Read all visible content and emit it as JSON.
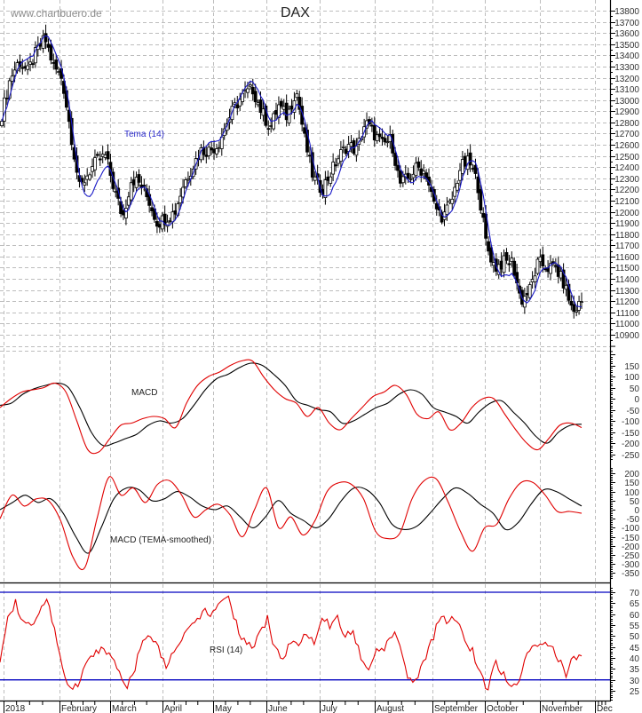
{
  "header": {
    "site": "www.chartbuero.de",
    "title": "DAX"
  },
  "labels": {
    "tema": "Tema (14)",
    "macd": "MACD",
    "macd_tema": "MACD (TEMA-smoothed)",
    "rsi": "RSI (14)"
  },
  "colors": {
    "grid": "#bdbdbd",
    "candle": "#000000",
    "tema_line": "#1a1ac8",
    "macd_line": "#000000",
    "signal_line": "#e00000",
    "rsi_line": "#e00000",
    "rsi_level": "#0000c0",
    "axis_text": "#333333"
  },
  "chart_data": [
    {
      "type": "candlestick",
      "title": "DAX",
      "overlay": "Tema (14)",
      "ylabel": "",
      "ylim": [
        10800,
        13850
      ],
      "y_ticks": [
        13800,
        13700,
        13600,
        13500,
        13400,
        13300,
        13200,
        13100,
        13000,
        12900,
        12800,
        12700,
        12600,
        12500,
        12400,
        12300,
        12200,
        12100,
        12000,
        11900,
        11800,
        11700,
        11600,
        11500,
        11400,
        11300,
        11200,
        11100,
        11000,
        10900
      ],
      "x_ticks": [
        "2018",
        "February",
        "March",
        "April",
        "May",
        "June",
        "July",
        "August",
        "September",
        "October",
        "November",
        "Dec"
      ],
      "grid": true,
      "close_approx": {
        "x": [
          "Jan 02",
          "Jan 05",
          "Jan 10",
          "Jan 15",
          "Jan 19",
          "Jan 23",
          "Jan 26",
          "Jan 31",
          "Feb 05",
          "Feb 09",
          "Feb 14",
          "Feb 19",
          "Feb 23",
          "Feb 28",
          "Mar 05",
          "Mar 09",
          "Mar 14",
          "Mar 19",
          "Mar 23",
          "Mar 28",
          "Apr 03",
          "Apr 09",
          "Apr 13",
          "Apr 18",
          "Apr 24",
          "Apr 30",
          "May 07",
          "May 11",
          "May 16",
          "May 22",
          "May 28",
          "Jun 01",
          "Jun 06",
          "Jun 12",
          "Jun 15",
          "Jun 20",
          "Jun 26",
          "Jul 02",
          "Jul 06",
          "Jul 11",
          "Jul 16",
          "Jul 20",
          "Jul 25",
          "Jul 31",
          "Aug 06",
          "Aug 10",
          "Aug 15",
          "Aug 20",
          "Aug 24",
          "Aug 30",
          "Sep 05",
          "Sep 10",
          "Sep 14",
          "Sep 20",
          "Sep 26",
          "Oct 01",
          "Oct 05",
          "Oct 10",
          "Oct 15",
          "Oct 19",
          "Oct 25",
          "Oct 30",
          "Nov 02",
          "Nov 07",
          "Nov 12",
          "Nov 15",
          "Nov 20",
          "Nov 23"
        ],
        "close": [
          12870,
          13200,
          13350,
          13250,
          13430,
          13550,
          13300,
          13190,
          12700,
          12200,
          12350,
          12450,
          12500,
          12200,
          11950,
          12300,
          12250,
          12100,
          11900,
          11950,
          12000,
          12250,
          12400,
          12550,
          12550,
          12600,
          12800,
          12950,
          13050,
          13100,
          12900,
          12750,
          12950,
          12850,
          13100,
          12650,
          12300,
          12200,
          12350,
          12500,
          12600,
          12550,
          12800,
          12700,
          12600,
          12650,
          12250,
          12300,
          12400,
          12350,
          12050,
          11950,
          12100,
          12400,
          12450,
          12250,
          11700,
          11500,
          11550,
          11550,
          11200,
          11300,
          11550,
          11500,
          11500,
          11350,
          11100,
          11200
        ]
      }
    },
    {
      "type": "line",
      "title": "MACD",
      "ylim": [
        -270,
        200
      ],
      "y_ticks": [
        150,
        100,
        50,
        0,
        -50,
        -100,
        -150,
        -200,
        -250
      ],
      "series": [
        {
          "name": "MACD",
          "color": "#000000",
          "values": [
            -30,
            -20,
            20,
            45,
            60,
            70,
            50,
            -40,
            -150,
            -210,
            -200,
            -180,
            -160,
            -120,
            -100,
            -110,
            -90,
            -30,
            40,
            90,
            110,
            140,
            160,
            150,
            110,
            60,
            -10,
            -30,
            -50,
            -60,
            -110,
            -100,
            -70,
            -40,
            -20,
            20,
            40,
            20,
            -40,
            -60,
            -80,
            -110,
            -60,
            -20,
            -10,
            -60,
            -110,
            -170,
            -200,
            -150,
            -120,
            -115
          ]
        },
        {
          "name": "Signal",
          "color": "#e00000",
          "values": [
            -40,
            0,
            30,
            40,
            50,
            70,
            30,
            -100,
            -230,
            -240,
            -180,
            -120,
            -110,
            -90,
            -80,
            -90,
            -130,
            -20,
            60,
            100,
            120,
            150,
            170,
            170,
            100,
            40,
            0,
            -20,
            -80,
            -40,
            -110,
            -140,
            -90,
            -40,
            10,
            30,
            60,
            20,
            -70,
            -90,
            -60,
            -140,
            -110,
            -40,
            0,
            0,
            -70,
            -140,
            -200,
            -230,
            -180,
            -120,
            -110,
            -130
          ]
        }
      ]
    },
    {
      "type": "line",
      "title": "MACD (TEMA-smoothed)",
      "ylim": [
        -380,
        230
      ],
      "y_ticks": [
        200,
        150,
        100,
        50,
        0,
        -50,
        -100,
        -150,
        -200,
        -250,
        -300,
        -350
      ],
      "series": [
        {
          "name": "MACD TEMA",
          "color": "#000000",
          "values": [
            0,
            40,
            80,
            40,
            60,
            -20,
            -150,
            -240,
            -100,
            60,
            120,
            110,
            50,
            60,
            100,
            70,
            20,
            0,
            20,
            -40,
            -100,
            -40,
            50,
            -20,
            -60,
            -100,
            -50,
            50,
            120,
            110,
            40,
            -80,
            -110,
            -90,
            -20,
            60,
            120,
            90,
            30,
            -20,
            -110,
            -70,
            30,
            110,
            100,
            60,
            20
          ]
        },
        {
          "name": "Signal TEMA",
          "color": "#e00000",
          "values": [
            -50,
            80,
            20,
            60,
            50,
            -60,
            -260,
            -320,
            -50,
            180,
            80,
            120,
            40,
            140,
            160,
            80,
            -40,
            0,
            30,
            -30,
            -150,
            0,
            120,
            -100,
            -40,
            -140,
            -60,
            100,
            150,
            140,
            60,
            -120,
            -160,
            -130,
            60,
            160,
            170,
            40,
            -120,
            -230,
            -100,
            -80,
            60,
            150,
            150,
            80,
            -10,
            -10,
            -20
          ]
        }
      ]
    },
    {
      "type": "line",
      "title": "RSI (14)",
      "ylim": [
        22,
        72
      ],
      "y_ticks": [
        70,
        65,
        60,
        55,
        50,
        45,
        40,
        35,
        30,
        25
      ],
      "reference_line": 30,
      "series": [
        {
          "name": "RSI",
          "color": "#e00000",
          "values": [
            40,
            60,
            65,
            55,
            55,
            60,
            66,
            52,
            35,
            24,
            28,
            38,
            42,
            44,
            42,
            35,
            26,
            34,
            46,
            50,
            48,
            36,
            42,
            48,
            55,
            58,
            62,
            60,
            66,
            70,
            56,
            48,
            44,
            50,
            58,
            44,
            40,
            48,
            45,
            52,
            48,
            60,
            55,
            58,
            50,
            51,
            40,
            36,
            44,
            45,
            52,
            45,
            30,
            31,
            39,
            48,
            60,
            56,
            60,
            49,
            44,
            34,
            26,
            38,
            33,
            26,
            30,
            42,
            44,
            48,
            45,
            40,
            33,
            40,
            40
          ]
        }
      ]
    }
  ],
  "axes": {
    "price_ticks": [
      "13800",
      "13700",
      "13600",
      "13500",
      "13400",
      "13300",
      "13200",
      "13100",
      "13000",
      "12900",
      "12800",
      "12700",
      "12600",
      "12500",
      "12400",
      "12300",
      "12200",
      "12100",
      "12000",
      "11900",
      "11800",
      "11700",
      "11600",
      "11500",
      "11400",
      "11300",
      "11200",
      "11100",
      "11000",
      "10900"
    ],
    "macd_ticks": [
      "150",
      "100",
      "50",
      "0",
      "-50",
      "-100",
      "-150",
      "-200",
      "-250"
    ],
    "macd_tema_ticks": [
      "200",
      "150",
      "100",
      "50",
      "0",
      "-50",
      "-100",
      "-150",
      "-200",
      "-250",
      "-300",
      "-350"
    ],
    "rsi_ticks": [
      "70",
      "65",
      "60",
      "55",
      "50",
      "45",
      "40",
      "35",
      "30",
      "25"
    ],
    "months": [
      "2018",
      "February",
      "March",
      "April",
      "May",
      "June",
      "July",
      "August",
      "September",
      "October",
      "November",
      "Dec"
    ]
  }
}
